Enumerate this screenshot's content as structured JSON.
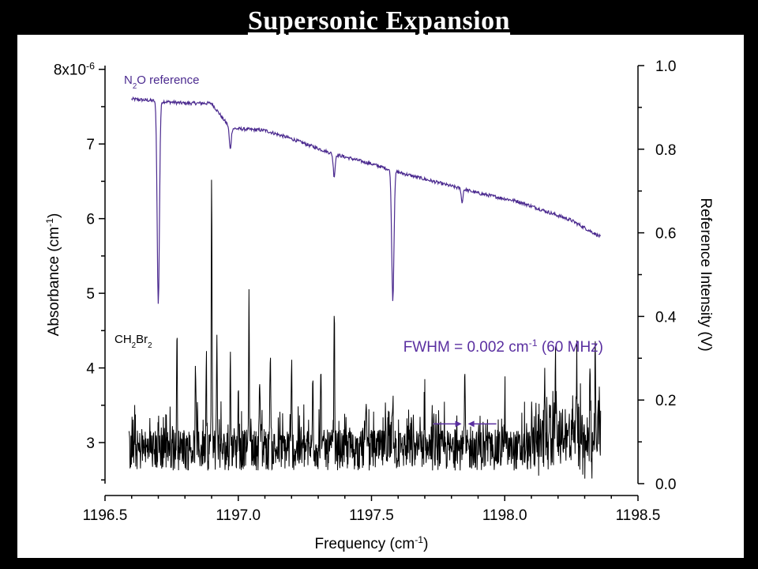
{
  "slide": {
    "title": "Supersonic Expansion"
  },
  "colors": {
    "reference": "#4b2a8f",
    "sample": "#000000",
    "annotation": "#5a2fa0",
    "background": "#000000",
    "panel": "#ffffff"
  },
  "chart_data": {
    "type": "line",
    "x_axis": {
      "label": "Frequency",
      "unit": "(cm",
      "unit_sup": "-1",
      "unit_close": ")",
      "range": [
        1196.5,
        1198.5
      ],
      "ticks": [
        "1196.5",
        "1197.0",
        "1197.5",
        "1198.0",
        "1198.5"
      ]
    },
    "y_left": {
      "label_main": "Absorbance (cm",
      "label_sup": "-1",
      "label_close": ")",
      "range": [
        2.45,
        8.05
      ],
      "ticks": [
        {
          "v": 3,
          "t": "3"
        },
        {
          "v": 4,
          "t": "4"
        },
        {
          "v": 5,
          "t": "5"
        },
        {
          "v": 6,
          "t": "6"
        },
        {
          "v": 7,
          "t": "7"
        }
      ],
      "top_label": "8x10",
      "top_label_sup": "-6"
    },
    "y_right": {
      "label": "Reference Intensity (V)",
      "range": [
        0.0,
        1.0
      ],
      "ticks": [
        "0.0",
        "0.2",
        "0.4",
        "0.6",
        "0.8",
        "1.0"
      ]
    },
    "series": [
      {
        "name": "N2O reference",
        "name_prefix": "N",
        "name_sub": "2",
        "name_suffix": "O reference",
        "axis": "right",
        "color": "#4b2a8f",
        "baseline_points": [
          [
            1196.6,
            0.92
          ],
          [
            1196.8,
            0.91
          ],
          [
            1196.9,
            0.91
          ],
          [
            1196.97,
            0.85
          ],
          [
            1197.1,
            0.845
          ],
          [
            1197.2,
            0.825
          ],
          [
            1197.35,
            0.79
          ],
          [
            1197.5,
            0.765
          ],
          [
            1197.6,
            0.745
          ],
          [
            1197.75,
            0.72
          ],
          [
            1197.9,
            0.695
          ],
          [
            1198.05,
            0.675
          ],
          [
            1198.25,
            0.63
          ],
          [
            1198.36,
            0.59
          ]
        ],
        "dips": [
          {
            "x": 1196.7,
            "min": 0.43,
            "width": 0.006
          },
          {
            "x": 1196.97,
            "min": 0.8,
            "width": 0.005
          },
          {
            "x": 1197.36,
            "min": 0.735,
            "width": 0.005
          },
          {
            "x": 1197.58,
            "min": 0.44,
            "width": 0.006
          },
          {
            "x": 1197.84,
            "min": 0.67,
            "width": 0.004
          }
        ]
      },
      {
        "name": "CH2Br2",
        "name_parts": [
          "CH",
          "2",
          "Br",
          "2"
        ],
        "axis": "left",
        "color": "#000000",
        "x_range": [
          1196.59,
          1198.36
        ],
        "baseline": 2.9,
        "peaks": [
          [
            1196.77,
            4.35
          ],
          [
            1196.84,
            3.9
          ],
          [
            1196.88,
            4.1
          ],
          [
            1196.9,
            6.5
          ],
          [
            1196.92,
            4.3
          ],
          [
            1196.97,
            3.9
          ],
          [
            1197.0,
            3.6
          ],
          [
            1197.04,
            4.8
          ],
          [
            1197.08,
            3.9
          ],
          [
            1197.12,
            4.3
          ],
          [
            1197.2,
            3.8
          ],
          [
            1197.28,
            3.9
          ],
          [
            1197.31,
            3.8
          ],
          [
            1197.36,
            4.45
          ],
          [
            1197.48,
            3.6
          ],
          [
            1197.58,
            3.7
          ],
          [
            1197.7,
            3.6
          ],
          [
            1197.82,
            3.3
          ],
          [
            1197.85,
            3.7
          ],
          [
            1198.0,
            3.4
          ],
          [
            1198.15,
            3.6
          ],
          [
            1198.19,
            4.05
          ],
          [
            1198.27,
            4.05
          ],
          [
            1198.32,
            4.0
          ],
          [
            1198.34,
            4.05
          ],
          [
            1198.35,
            3.4
          ]
        ]
      }
    ],
    "annotations": {
      "fwhm_text": "FWHM = 0.002 cm",
      "fwhm_sup": "-1",
      "fwhm_tail": " (60 MHz)",
      "arrow_peak_x": 1197.85,
      "arrow_y": 3.25
    }
  }
}
